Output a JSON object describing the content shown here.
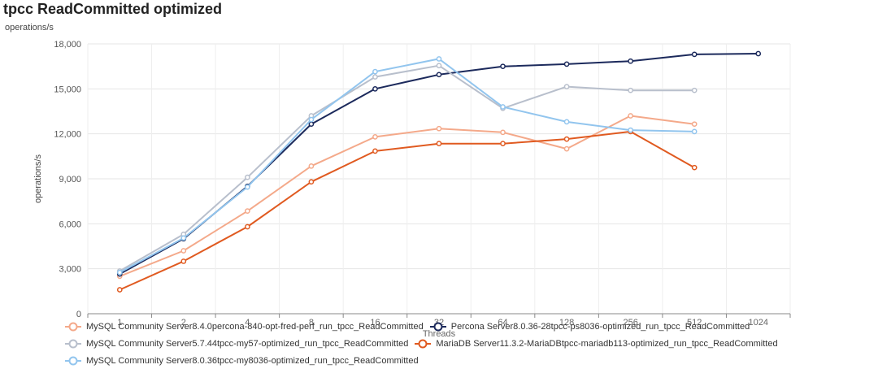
{
  "header": {
    "title": "tpcc ReadCommitted optimized",
    "subtitle": "operations/s"
  },
  "chart_data": {
    "type": "line",
    "title": "tpcc ReadCommitted optimized",
    "subtitle": "operations/s",
    "xlabel": "Threads",
    "ylabel": "operations/s",
    "x": [
      "1",
      "2",
      "4",
      "8",
      "16",
      "32",
      "64",
      "128",
      "256",
      "512",
      "1024"
    ],
    "ylim": [
      0,
      18000
    ],
    "yticks": [
      0,
      3000,
      6000,
      9000,
      12000,
      15000,
      18000
    ],
    "ytick_labels": [
      "0",
      "3,000",
      "6,000",
      "9,000",
      "12,000",
      "15,000",
      "18,000"
    ],
    "grid": true,
    "legend_position": "bottom",
    "series": [
      {
        "name": "MySQL Community Server8.4.0percona-840-opt-fred-perf_run_tpcc_ReadCommitted",
        "color": "#f4a98a",
        "values": [
          2500,
          4200,
          6850,
          9850,
          11800,
          12350,
          12100,
          11000,
          13200,
          12650,
          null
        ]
      },
      {
        "name": "Percona Server8.0.36-28tpcc-ps8036-optimized_run_tpcc_ReadCommitted",
        "color": "#1c2a5c",
        "values": [
          2650,
          5000,
          8500,
          12650,
          15000,
          15950,
          16500,
          16650,
          16850,
          17300,
          17350
        ]
      },
      {
        "name": "MySQL Community Server5.7.44tpcc-my57-optimized_run_tpcc_ReadCommitted",
        "color": "#b8bfcc",
        "values": [
          2850,
          5300,
          9100,
          13200,
          15800,
          16550,
          13700,
          15150,
          14900,
          14900,
          null
        ]
      },
      {
        "name": "MariaDB Server11.3.2-MariaDBtpcc-mariadb113-optimized_run_tpcc_ReadCommitted",
        "color": "#e05a20",
        "values": [
          1600,
          3500,
          5800,
          8800,
          10850,
          11350,
          11350,
          11650,
          12150,
          9750,
          null
        ]
      },
      {
        "name": "MySQL Community Server8.0.36tpcc-my8036-optimized_run_tpcc_ReadCommitted",
        "color": "#92c5ee",
        "values": [
          2750,
          5050,
          8450,
          12950,
          16150,
          17000,
          13800,
          12800,
          12250,
          12150,
          null
        ]
      }
    ]
  }
}
